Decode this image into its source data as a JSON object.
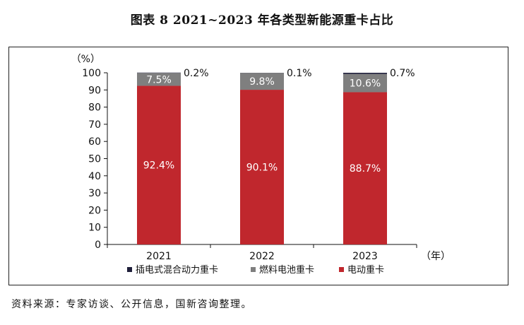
{
  "figure": {
    "title": "图表 8  2021~2023 年各类型新能源重卡占比",
    "source": "资料来源：专家访谈、公开信息，国新咨询整理。"
  },
  "chart_data": {
    "type": "bar",
    "stacked": true,
    "categories": [
      "2021",
      "2022",
      "2023"
    ],
    "series": [
      {
        "name": "电动重卡",
        "values": [
          92.4,
          90.1,
          88.7
        ],
        "labels": [
          "92.4%",
          "90.1%",
          "88.7%"
        ],
        "color": "#c0272d",
        "label_position": "inside"
      },
      {
        "name": "燃料电池重卡",
        "values": [
          7.5,
          9.8,
          10.6
        ],
        "labels": [
          "7.5%",
          "9.8%",
          "10.6%"
        ],
        "color": "#7f7f7f",
        "label_position": "inside"
      },
      {
        "name": "插电式混合动力重卡",
        "values": [
          0.2,
          0.1,
          0.7
        ],
        "labels": [
          "0.2%",
          "0.1%",
          "0.7%"
        ],
        "color": "#1f1f3a",
        "label_position": "outside"
      }
    ],
    "legend_order": [
      "插电式混合动力重卡",
      "燃料电池重卡",
      "电动重卡"
    ],
    "y_unit": "（%）",
    "x_unit": "（年）",
    "ylim": [
      0,
      100
    ],
    "yticks": [
      0,
      10,
      20,
      30,
      40,
      50,
      60,
      70,
      80,
      90,
      100
    ],
    "grid": false,
    "legend_position": "bottom"
  }
}
